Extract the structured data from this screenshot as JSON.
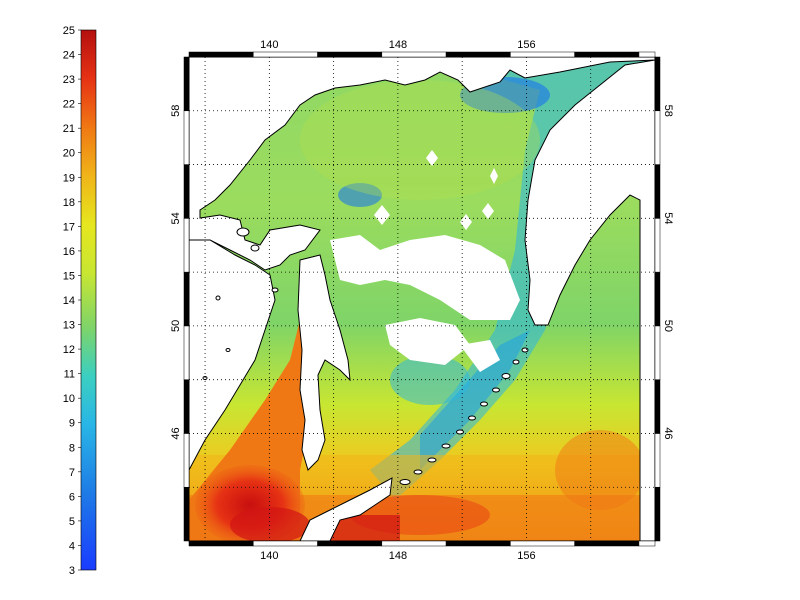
{
  "colorbar": {
    "min": 3,
    "max": 25,
    "ticks": [
      "3",
      "4",
      "5",
      "6",
      "7",
      "8",
      "9",
      "10",
      "11",
      "12",
      "13",
      "14",
      "15",
      "16",
      "17",
      "18",
      "19",
      "20",
      "21",
      "22",
      "23",
      "24",
      "25"
    ]
  },
  "map": {
    "lon_range": [
      135,
      164
    ],
    "lat_range": [
      42,
      60
    ],
    "x_ticks": [
      "140",
      "148",
      "156"
    ],
    "y_ticks": [
      "46",
      "50",
      "54",
      "58"
    ],
    "grid": "dotted",
    "land_color": "#ffffff",
    "missing_data_color": "#ffffff"
  },
  "colors": {
    "cold": "#1a3cff",
    "cool": "#29b6e6",
    "mild": "#7fd468",
    "warm": "#e6e61e",
    "hot": "#f07814",
    "hottest": "#d21414"
  }
}
